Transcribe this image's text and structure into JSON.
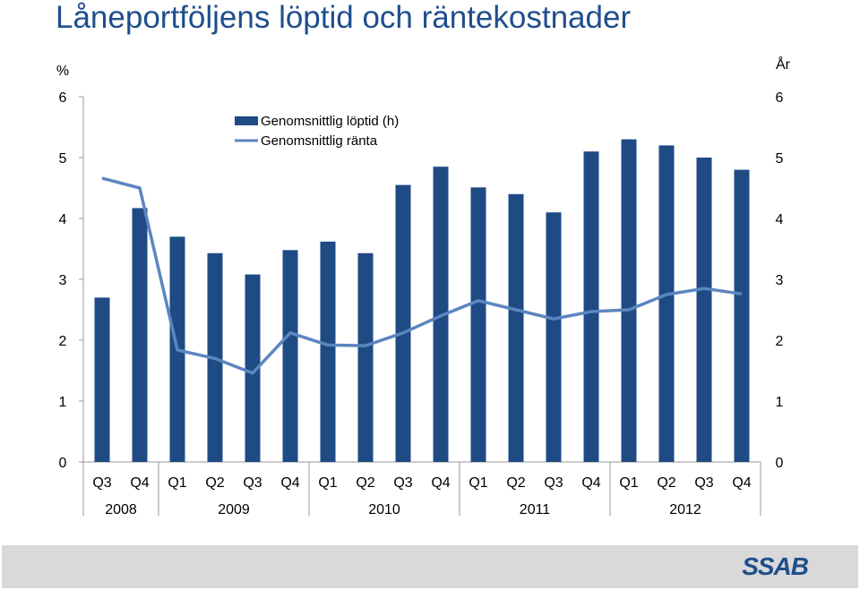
{
  "title": "Låneportföljens löptid och räntekostnader",
  "colors": {
    "bar": "#1f4b85",
    "line": "#5b86c0",
    "title": "#1f4e8c",
    "footer": "#d9d9d9"
  },
  "logo_text": "SSAB",
  "chart_data": {
    "type": "bar",
    "title": "",
    "y_left_label": "%",
    "y_right_label": "År",
    "ylim": [
      0,
      6
    ],
    "y_ticks": [
      "0",
      "1",
      "2",
      "3",
      "4",
      "5",
      "6"
    ],
    "categories": [
      "Q3",
      "Q4",
      "Q1",
      "Q2",
      "Q3",
      "Q4",
      "Q1",
      "Q2",
      "Q3",
      "Q4",
      "Q1",
      "Q2",
      "Q3",
      "Q4",
      "Q1",
      "Q2",
      "Q3",
      "Q4"
    ],
    "year_groups": [
      {
        "label": "2008",
        "count": 2
      },
      {
        "label": "2009",
        "count": 4
      },
      {
        "label": "2010",
        "count": 4
      },
      {
        "label": "2011",
        "count": 4
      },
      {
        "label": "2012",
        "count": 4
      }
    ],
    "series": [
      {
        "name": "Genomsnittlig löptid (h)",
        "type": "bar",
        "axis": "right",
        "values": [
          2.7,
          4.17,
          3.7,
          3.43,
          3.08,
          3.48,
          3.62,
          3.43,
          4.55,
          4.85,
          4.51,
          4.4,
          4.1,
          5.1,
          5.3,
          5.2,
          5.0,
          4.8
        ]
      },
      {
        "name": "Genomsnittlig ränta",
        "type": "line",
        "axis": "left",
        "values": [
          4.66,
          4.5,
          1.84,
          1.7,
          1.46,
          2.12,
          1.92,
          1.91,
          2.12,
          2.4,
          2.65,
          2.5,
          2.35,
          2.47,
          2.5,
          2.75,
          2.85,
          2.76
        ]
      }
    ],
    "legend_position": "top-left",
    "grid": false
  }
}
